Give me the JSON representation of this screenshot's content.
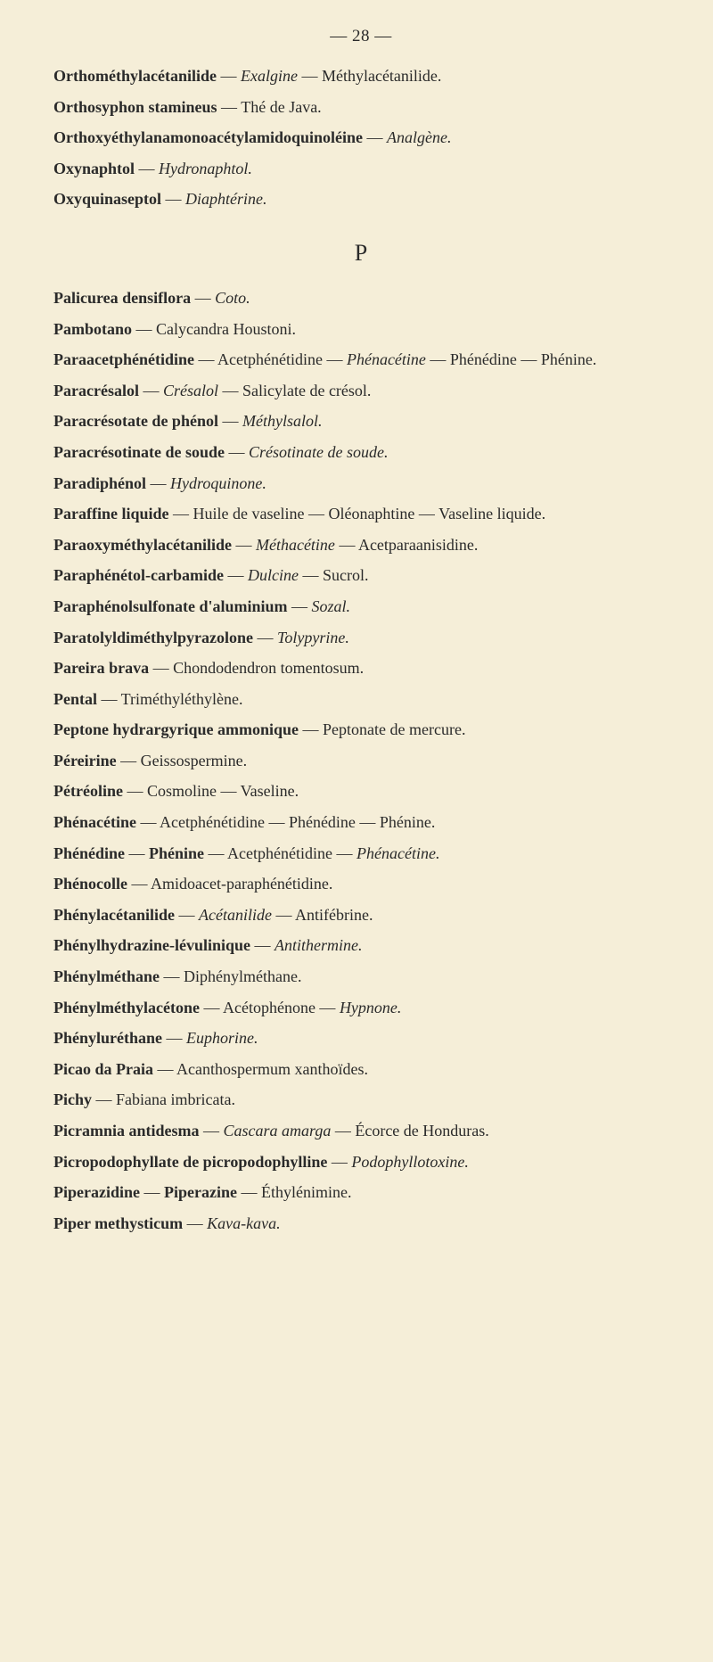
{
  "page_number": "— 28 —",
  "section_header": "P",
  "entries": [
    [
      {
        "text": "Orthométhylacétanilide",
        "style": "bold"
      },
      {
        "text": " — ",
        "style": "plain"
      },
      {
        "text": "Exalgine",
        "style": "italic"
      },
      {
        "text": " — Méthylacétanilide.",
        "style": "plain"
      }
    ],
    [
      {
        "text": "Orthosyphon stamineus",
        "style": "bold"
      },
      {
        "text": " — Thé de Java.",
        "style": "plain"
      }
    ],
    [
      {
        "text": "Orthoxyéthylanamonoacétylamidoquinoléine",
        "style": "bold"
      },
      {
        "text": " — ",
        "style": "plain"
      },
      {
        "text": "Analgène.",
        "style": "italic"
      }
    ],
    [
      {
        "text": "Oxynaphtol",
        "style": "bold"
      },
      {
        "text": " — ",
        "style": "plain"
      },
      {
        "text": "Hydronaphtol.",
        "style": "italic"
      }
    ],
    [
      {
        "text": "Oxyquinaseptol",
        "style": "bold"
      },
      {
        "text": " — ",
        "style": "plain"
      },
      {
        "text": "Diaphtérine.",
        "style": "italic"
      }
    ]
  ],
  "entries_p": [
    [
      {
        "text": "Palicurea densiflora",
        "style": "bold"
      },
      {
        "text": " — ",
        "style": "plain"
      },
      {
        "text": "Coto.",
        "style": "italic"
      }
    ],
    [
      {
        "text": "Pambotano",
        "style": "bold"
      },
      {
        "text": " — Calycandra Houstoni.",
        "style": "plain"
      }
    ],
    [
      {
        "text": "Paraacetphénétidine",
        "style": "bold"
      },
      {
        "text": " — Acetphénétidine — ",
        "style": "plain"
      },
      {
        "text": "Phénacétine",
        "style": "italic"
      },
      {
        "text": " — Phénédine — Phénine.",
        "style": "plain"
      }
    ],
    [
      {
        "text": "Paracrésalol",
        "style": "bold"
      },
      {
        "text": " — ",
        "style": "plain"
      },
      {
        "text": "Crésalol",
        "style": "italic"
      },
      {
        "text": " — Salicylate de crésol.",
        "style": "plain"
      }
    ],
    [
      {
        "text": "Paracrésotate de phénol",
        "style": "bold"
      },
      {
        "text": " — ",
        "style": "plain"
      },
      {
        "text": "Méthylsalol.",
        "style": "italic"
      }
    ],
    [
      {
        "text": "Paracrésotinate de soude",
        "style": "bold"
      },
      {
        "text": " — ",
        "style": "plain"
      },
      {
        "text": "Crésotinate de soude.",
        "style": "italic"
      }
    ],
    [
      {
        "text": "Paradiphénol",
        "style": "bold"
      },
      {
        "text": " — ",
        "style": "plain"
      },
      {
        "text": "Hydroquinone.",
        "style": "italic"
      }
    ],
    [
      {
        "text": "Paraffine liquide",
        "style": "bold"
      },
      {
        "text": " — Huile de vaseline — Oléonaphtine — Vaseline liquide.",
        "style": "plain"
      }
    ],
    [
      {
        "text": "Paraoxyméthylacétanilide",
        "style": "bold"
      },
      {
        "text": " — ",
        "style": "plain"
      },
      {
        "text": "Méthacétine",
        "style": "italic"
      },
      {
        "text": " — Acetparaanisidine.",
        "style": "plain"
      }
    ],
    [
      {
        "text": "Paraphénétol-carbamide",
        "style": "bold"
      },
      {
        "text": " — ",
        "style": "plain"
      },
      {
        "text": "Dulcine",
        "style": "italic"
      },
      {
        "text": " — Sucrol.",
        "style": "plain"
      }
    ],
    [
      {
        "text": "Paraphénolsulfonate d'aluminium",
        "style": "bold"
      },
      {
        "text": " — ",
        "style": "plain"
      },
      {
        "text": "Sozal.",
        "style": "italic"
      }
    ],
    [
      {
        "text": "Paratolyldiméthylpyrazolone",
        "style": "bold"
      },
      {
        "text": " — ",
        "style": "plain"
      },
      {
        "text": "Tolypyrine.",
        "style": "italic"
      }
    ],
    [
      {
        "text": "Pareira brava",
        "style": "bold"
      },
      {
        "text": " — Chondodendron tomentosum.",
        "style": "plain"
      }
    ],
    [
      {
        "text": "Pental",
        "style": "bold"
      },
      {
        "text": " — Triméthyléthylène.",
        "style": "plain"
      }
    ],
    [
      {
        "text": "Peptone hydrargyrique ammonique",
        "style": "bold"
      },
      {
        "text": " — Peptonate de mercure.",
        "style": "plain"
      }
    ],
    [
      {
        "text": "Péreirine",
        "style": "bold"
      },
      {
        "text": " — Geissospermine.",
        "style": "plain"
      }
    ],
    [
      {
        "text": "Pétréoline",
        "style": "bold"
      },
      {
        "text": " — Cosmoline — Vaseline.",
        "style": "plain"
      }
    ],
    [
      {
        "text": "Phénacétine",
        "style": "bold"
      },
      {
        "text": " — Acetphénétidine — Phénédine — Phénine.",
        "style": "plain"
      }
    ],
    [
      {
        "text": "Phénédine",
        "style": "bold"
      },
      {
        "text": " — ",
        "style": "plain"
      },
      {
        "text": "Phénine",
        "style": "bold"
      },
      {
        "text": " — Acetphénétidine — ",
        "style": "plain"
      },
      {
        "text": "Phénacétine.",
        "style": "italic"
      }
    ],
    [
      {
        "text": "Phénocolle",
        "style": "bold"
      },
      {
        "text": " — Amidoacet-paraphénétidine.",
        "style": "plain"
      }
    ],
    [
      {
        "text": "Phénylacétanilide",
        "style": "bold"
      },
      {
        "text": " — ",
        "style": "plain"
      },
      {
        "text": "Acétanilide",
        "style": "italic"
      },
      {
        "text": " — Antifébrine.",
        "style": "plain"
      }
    ],
    [
      {
        "text": "Phénylhydrazine-lévulinique",
        "style": "bold"
      },
      {
        "text": " — ",
        "style": "plain"
      },
      {
        "text": "Antithermine.",
        "style": "italic"
      }
    ],
    [
      {
        "text": "Phénylméthane",
        "style": "bold"
      },
      {
        "text": " — Diphénylméthane.",
        "style": "plain"
      }
    ],
    [
      {
        "text": "Phénylméthylacétone",
        "style": "bold"
      },
      {
        "text": " — Acétophénone — ",
        "style": "plain"
      },
      {
        "text": "Hypnone.",
        "style": "italic"
      }
    ],
    [
      {
        "text": "Phényluréthane",
        "style": "bold"
      },
      {
        "text": " — ",
        "style": "plain"
      },
      {
        "text": "Euphorine.",
        "style": "italic"
      }
    ],
    [
      {
        "text": "Picao da Praia",
        "style": "bold"
      },
      {
        "text": " — Acanthospermum xanthoïdes.",
        "style": "plain"
      }
    ],
    [
      {
        "text": "Pichy",
        "style": "bold"
      },
      {
        "text": " — Fabiana imbricata.",
        "style": "plain"
      }
    ],
    [
      {
        "text": "Picramnia antidesma",
        "style": "bold"
      },
      {
        "text": " — ",
        "style": "plain"
      },
      {
        "text": "Cascara amarga",
        "style": "italic"
      },
      {
        "text": " — Écorce de Honduras.",
        "style": "plain"
      }
    ],
    [
      {
        "text": "Picropodophyllate de picropodophylline",
        "style": "bold"
      },
      {
        "text": " — ",
        "style": "plain"
      },
      {
        "text": "Podophyllotoxine.",
        "style": "italic"
      }
    ],
    [
      {
        "text": "Piperazidine",
        "style": "bold"
      },
      {
        "text": " — ",
        "style": "plain"
      },
      {
        "text": "Piperazine",
        "style": "bold"
      },
      {
        "text": " — Éthylénimine.",
        "style": "plain"
      }
    ],
    [
      {
        "text": "Piper methysticum",
        "style": "bold"
      },
      {
        "text": " — ",
        "style": "plain"
      },
      {
        "text": "Kava-kava.",
        "style": "italic"
      }
    ]
  ]
}
